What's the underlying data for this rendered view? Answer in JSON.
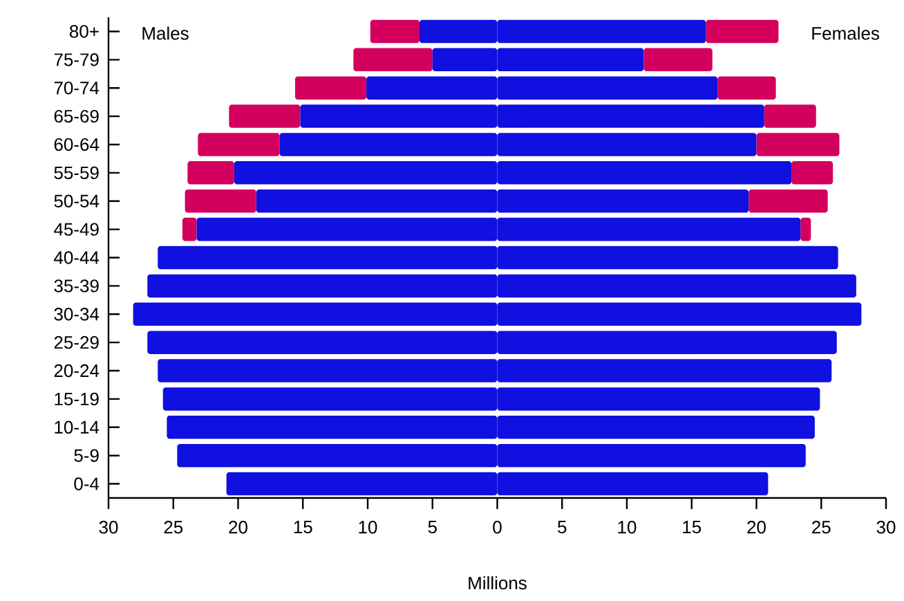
{
  "chart_data": {
    "type": "bar",
    "orientation": "horizontal",
    "stacked": true,
    "xlabel": "Millions",
    "categories": [
      "80+",
      "75-79",
      "70-74",
      "65-69",
      "60-64",
      "55-59",
      "50-54",
      "45-49",
      "40-44",
      "35-39",
      "30-34",
      "25-29",
      "20-24",
      "15-19",
      "10-14",
      "5-9",
      "0-4"
    ],
    "series": [
      {
        "color": "#1010e0",
        "values": [
          -6.0,
          -5.0,
          -10.1,
          -15.2,
          -16.8,
          -20.3,
          -18.6,
          -23.2,
          -26.2,
          -27.0,
          -28.1,
          -27.0,
          -26.2,
          -25.8,
          -25.5,
          -24.7,
          -20.9
        ]
      },
      {
        "color": "#d4005e",
        "values": [
          -3.8,
          -6.1,
          -5.5,
          -5.5,
          -6.3,
          -3.6,
          -5.5,
          -1.1,
          0,
          0,
          0,
          0,
          0,
          0,
          0,
          0,
          0
        ]
      },
      {
        "color": "#1010e0",
        "values": [
          16.1,
          11.3,
          17.0,
          20.6,
          20.0,
          22.7,
          19.4,
          23.4,
          26.3,
          27.7,
          28.1,
          26.2,
          25.8,
          24.9,
          24.5,
          23.8,
          20.9
        ]
      },
      {
        "color": "#d4005e",
        "values": [
          5.6,
          5.3,
          4.5,
          4.0,
          6.4,
          3.2,
          6.1,
          0.8,
          0,
          0,
          0,
          0,
          0,
          0,
          0,
          0,
          0
        ]
      }
    ],
    "xlim": [
      -30,
      30
    ],
    "xticks": [
      {
        "value": -30,
        "label": "30"
      },
      {
        "value": -25,
        "label": "25"
      },
      {
        "value": -20,
        "label": "20"
      },
      {
        "value": -15,
        "label": "15"
      },
      {
        "value": -10,
        "label": "10"
      },
      {
        "value": -5,
        "label": "5"
      },
      0,
      5,
      10,
      15,
      20,
      25,
      30
    ],
    "annotations": [
      "Males",
      "Females"
    ],
    "grid": false
  }
}
